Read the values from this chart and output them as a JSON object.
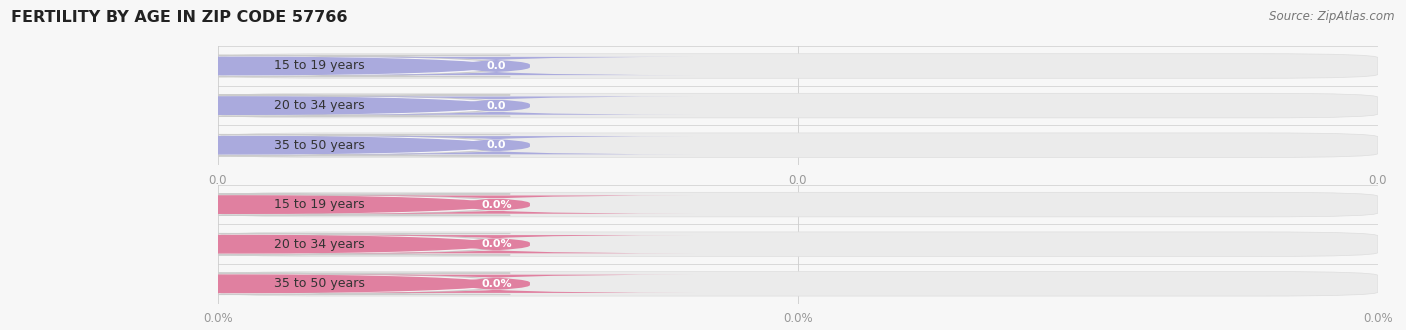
{
  "title": "FERTILITY BY AGE IN ZIP CODE 57766",
  "source": "Source: ZipAtlas.com",
  "background_color": "#f7f7f7",
  "fig_bg": "#f7f7f7",
  "top_section": {
    "categories": [
      "15 to 19 years",
      "20 to 34 years",
      "35 to 50 years"
    ],
    "values": [
      0.0,
      0.0,
      0.0
    ],
    "track_color": "#ebebeb",
    "pill_bg_color": "#f5f5f8",
    "circle_color": "#aaaadd",
    "badge_color": "#aaaadd",
    "label_color": "#333333",
    "value_text_color": "#ffffff",
    "x_tick_labels": [
      "0.0",
      "0.0",
      "0.0"
    ],
    "tick_color": "#999999",
    "is_percent": false
  },
  "bottom_section": {
    "categories": [
      "15 to 19 years",
      "20 to 34 years",
      "35 to 50 years"
    ],
    "values": [
      0.0,
      0.0,
      0.0
    ],
    "track_color": "#ebebeb",
    "pill_bg_color": "#f5f0f2",
    "circle_color": "#e080a0",
    "badge_color": "#e080a0",
    "label_color": "#333333",
    "value_text_color": "#ffffff",
    "x_tick_labels": [
      "0.0%",
      "0.0%",
      "0.0%"
    ],
    "tick_color": "#999999",
    "is_percent": true
  },
  "title_fontsize": 11.5,
  "source_fontsize": 8.5,
  "label_fontsize": 9,
  "value_fontsize": 8,
  "tick_fontsize": 8.5
}
